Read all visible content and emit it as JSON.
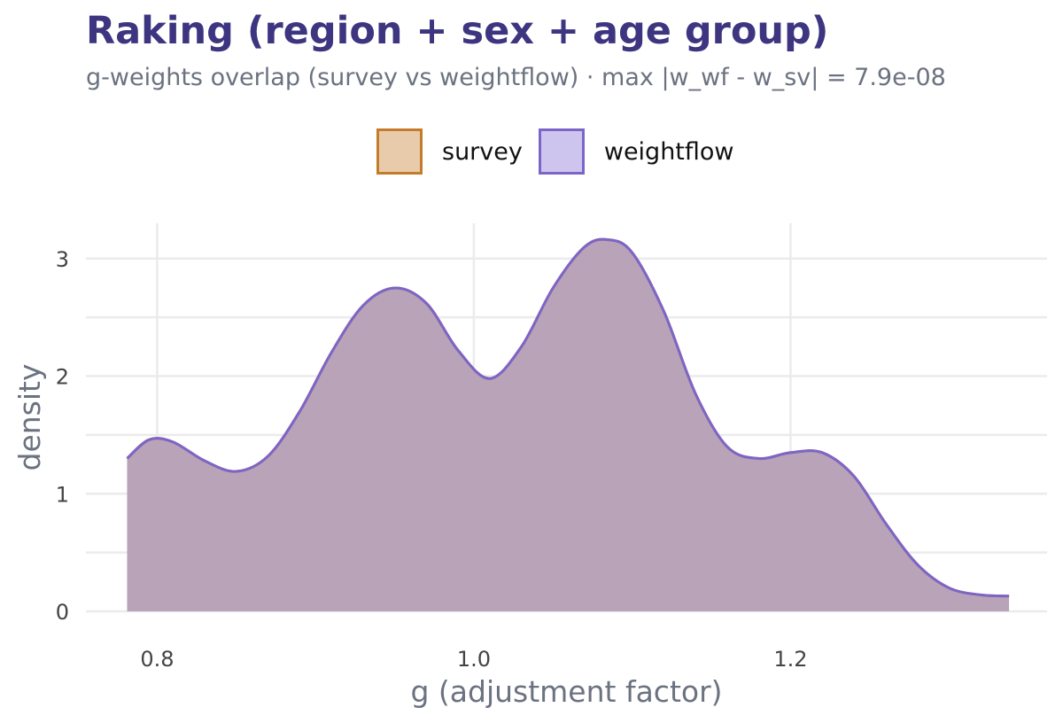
{
  "chart_data": {
    "type": "area",
    "title": "Raking (region + sex + age group)",
    "subtitle": "g-weights overlap (survey vs weightflow) · max |w_wf - w_sv| = 7.9e-08",
    "xlabel": "g (adjustment factor)",
    "ylabel": "density",
    "xlim": [
      0.755,
      1.362
    ],
    "ylim": [
      0,
      3.3
    ],
    "xticks": [
      0.8,
      1.0,
      1.2
    ],
    "xtick_labels": [
      "0.8",
      "1.0",
      "1.2"
    ],
    "yticks": [
      0,
      1,
      2,
      3
    ],
    "ytick_labels": [
      "0",
      "1",
      "2",
      "3"
    ],
    "grid": true,
    "legend_position": "top",
    "x": [
      0.781,
      0.795,
      0.81,
      0.83,
      0.85,
      0.87,
      0.89,
      0.91,
      0.93,
      0.95,
      0.97,
      0.99,
      1.01,
      1.03,
      1.05,
      1.07,
      1.085,
      1.1,
      1.12,
      1.14,
      1.16,
      1.18,
      1.2,
      1.22,
      1.24,
      1.26,
      1.28,
      1.3,
      1.32,
      1.338
    ],
    "series": [
      {
        "name": "survey",
        "fill": "#e8cbaa",
        "stroke": "#c67b2a",
        "values": [
          1.3,
          1.46,
          1.44,
          1.28,
          1.19,
          1.32,
          1.7,
          2.2,
          2.6,
          2.75,
          2.62,
          2.22,
          1.98,
          2.25,
          2.75,
          3.1,
          3.16,
          3.05,
          2.55,
          1.85,
          1.4,
          1.3,
          1.35,
          1.35,
          1.15,
          0.75,
          0.4,
          0.2,
          0.14,
          0.13
        ]
      },
      {
        "name": "weightflow",
        "fill": "#cdc5ed",
        "stroke": "#7c65c9",
        "values": [
          1.3,
          1.46,
          1.44,
          1.28,
          1.19,
          1.32,
          1.7,
          2.2,
          2.6,
          2.75,
          2.62,
          2.22,
          1.98,
          2.25,
          2.75,
          3.1,
          3.16,
          3.05,
          2.55,
          1.85,
          1.4,
          1.3,
          1.35,
          1.35,
          1.15,
          0.75,
          0.4,
          0.2,
          0.14,
          0.13
        ]
      }
    ],
    "overlap_fill": "#b9a3b8"
  }
}
